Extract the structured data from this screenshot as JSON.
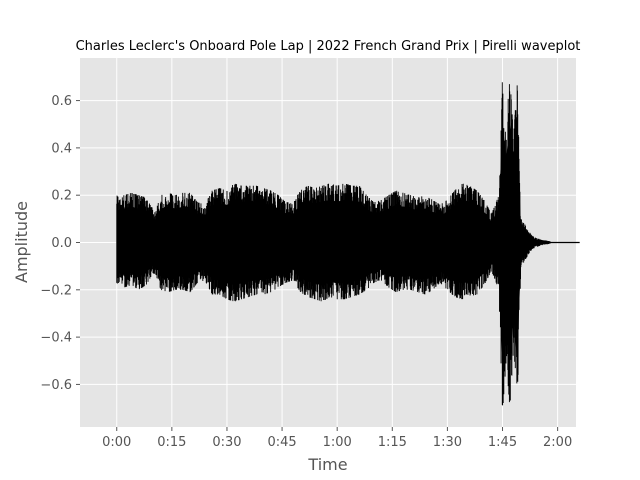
{
  "chart_data": {
    "type": "line",
    "title": "Charles Leclerc's Onboard Pole Lap | 2022 French Grand Prix | Pirelli waveplot",
    "xlabel": "Time",
    "ylabel": "Amplitude",
    "xlim_seconds": [
      -10,
      125
    ],
    "ylim": [
      -0.78,
      0.78
    ],
    "x_ticks": [
      {
        "value": 0,
        "label": "0:00"
      },
      {
        "value": 15,
        "label": "0:15"
      },
      {
        "value": 30,
        "label": "0:30"
      },
      {
        "value": 45,
        "label": "0:45"
      },
      {
        "value": 60,
        "label": "1:00"
      },
      {
        "value": 75,
        "label": "1:15"
      },
      {
        "value": 90,
        "label": "1:30"
      },
      {
        "value": 105,
        "label": "1:45"
      },
      {
        "value": 120,
        "label": "2:00"
      }
    ],
    "y_ticks": [
      {
        "value": 0.6,
        "label": "0.6"
      },
      {
        "value": 0.4,
        "label": "0.4"
      },
      {
        "value": 0.2,
        "label": "0.2"
      },
      {
        "value": 0.0,
        "label": "0.0"
      },
      {
        "value": -0.2,
        "label": "−0.2"
      },
      {
        "value": -0.4,
        "label": "−0.4"
      },
      {
        "value": -0.6,
        "label": "−0.6"
      }
    ],
    "grid": true,
    "style": "ggplot",
    "colors": {
      "background": "#e5e5e5",
      "grid": "#ffffff",
      "waveform": "#000000"
    },
    "series": [
      {
        "envelope": {
          "time_seconds": [
            0,
            0.5,
            2,
            4,
            6,
            8,
            9.5,
            10.5,
            12,
            14,
            16,
            18,
            20,
            22,
            24,
            26,
            28,
            30,
            32,
            34,
            36,
            38,
            40,
            42,
            44,
            46,
            48,
            50,
            52,
            54,
            56,
            58,
            60,
            62,
            64,
            66,
            68,
            70,
            72,
            74,
            76,
            78,
            80,
            82,
            84,
            86,
            88,
            90,
            92,
            94,
            96,
            98,
            100,
            102,
            104,
            105,
            106,
            107,
            108,
            109,
            110,
            111,
            112,
            113,
            114,
            115,
            116,
            117,
            118
          ],
          "upper": [
            0.2,
            0.19,
            0.2,
            0.21,
            0.2,
            0.19,
            0.15,
            0.13,
            0.2,
            0.21,
            0.2,
            0.21,
            0.21,
            0.17,
            0.16,
            0.22,
            0.23,
            0.22,
            0.25,
            0.24,
            0.24,
            0.24,
            0.23,
            0.22,
            0.2,
            0.17,
            0.17,
            0.22,
            0.24,
            0.23,
            0.24,
            0.25,
            0.24,
            0.25,
            0.24,
            0.24,
            0.2,
            0.17,
            0.18,
            0.2,
            0.22,
            0.21,
            0.2,
            0.19,
            0.2,
            0.18,
            0.16,
            0.18,
            0.22,
            0.25,
            0.24,
            0.22,
            0.18,
            0.12,
            0.2,
            0.71,
            0.5,
            0.7,
            0.45,
            0.68,
            0.1,
            0.08,
            0.05,
            0.03,
            0.02,
            0.015,
            0.01,
            0.008,
            0.005
          ],
          "lower": [
            -0.17,
            -0.18,
            -0.19,
            -0.18,
            -0.2,
            -0.18,
            -0.14,
            -0.13,
            -0.2,
            -0.21,
            -0.2,
            -0.2,
            -0.21,
            -0.17,
            -0.16,
            -0.22,
            -0.22,
            -0.24,
            -0.25,
            -0.24,
            -0.23,
            -0.22,
            -0.22,
            -0.21,
            -0.19,
            -0.17,
            -0.16,
            -0.21,
            -0.23,
            -0.24,
            -0.25,
            -0.23,
            -0.24,
            -0.24,
            -0.23,
            -0.22,
            -0.2,
            -0.17,
            -0.16,
            -0.19,
            -0.21,
            -0.2,
            -0.2,
            -0.21,
            -0.22,
            -0.2,
            -0.17,
            -0.2,
            -0.23,
            -0.24,
            -0.23,
            -0.22,
            -0.18,
            -0.12,
            -0.2,
            -0.72,
            -0.5,
            -0.7,
            -0.45,
            -0.7,
            -0.1,
            -0.08,
            -0.05,
            -0.03,
            -0.02,
            -0.015,
            -0.01,
            -0.008,
            -0.005
          ]
        },
        "tail_line_seconds": [
          118,
          126
        ]
      }
    ]
  }
}
